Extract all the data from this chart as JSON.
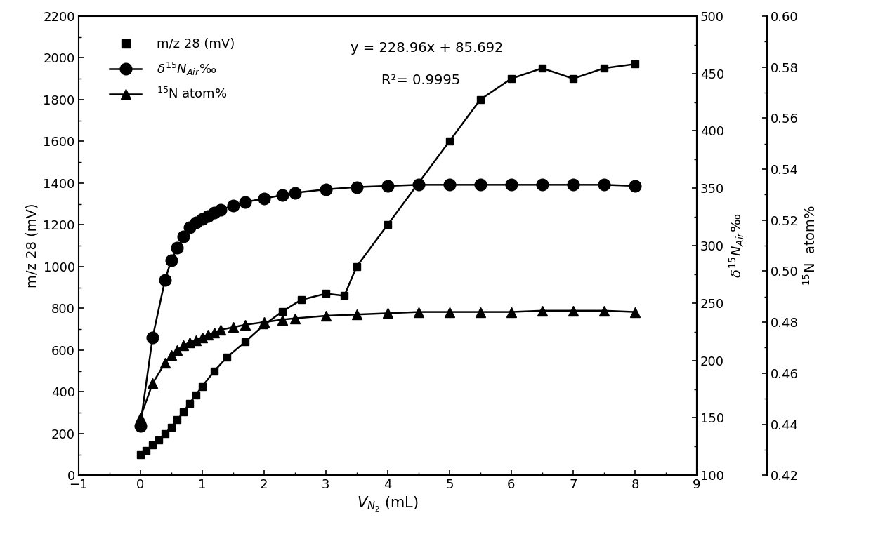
{
  "x_mz28": [
    0.0,
    0.1,
    0.2,
    0.3,
    0.4,
    0.5,
    0.6,
    0.7,
    0.8,
    0.9,
    1.0,
    1.2,
    1.4,
    1.7,
    2.0,
    2.3,
    2.6,
    3.0,
    3.3,
    3.5,
    4.0,
    4.5,
    5.0,
    5.5,
    6.0,
    6.5,
    7.0,
    7.5,
    8.0
  ],
  "y_mz28": [
    100,
    120,
    145,
    170,
    200,
    230,
    265,
    305,
    345,
    385,
    425,
    500,
    565,
    640,
    720,
    785,
    840,
    870,
    860,
    1000,
    1200,
    1400,
    1600,
    1800,
    1900,
    1950,
    1900,
    1950,
    1970
  ],
  "x_delta": [
    0.0,
    0.2,
    0.4,
    0.5,
    0.6,
    0.7,
    0.8,
    0.9,
    1.0,
    1.1,
    1.2,
    1.3,
    1.5,
    1.7,
    2.0,
    2.3,
    2.5,
    3.0,
    3.5,
    4.0,
    4.5,
    5.0,
    5.5,
    6.0,
    6.5,
    7.0,
    7.5,
    8.0
  ],
  "y_delta": [
    143,
    220,
    270,
    287,
    298,
    308,
    316,
    320,
    323,
    326,
    329,
    331,
    335,
    338,
    341,
    344,
    346,
    349,
    351,
    352,
    353,
    353,
    353,
    353,
    353,
    353,
    353,
    352
  ],
  "x_atom": [
    0.0,
    0.2,
    0.4,
    0.5,
    0.6,
    0.7,
    0.8,
    0.9,
    1.0,
    1.1,
    1.2,
    1.3,
    1.5,
    1.7,
    2.0,
    2.3,
    2.5,
    3.0,
    3.5,
    4.0,
    4.5,
    5.0,
    5.5,
    6.0,
    6.5,
    7.0,
    7.5,
    8.0
  ],
  "y_atom": [
    0.4425,
    0.456,
    0.464,
    0.467,
    0.469,
    0.471,
    0.472,
    0.473,
    0.474,
    0.475,
    0.476,
    0.477,
    0.478,
    0.479,
    0.48,
    0.481,
    0.4815,
    0.4825,
    0.483,
    0.4835,
    0.484,
    0.484,
    0.484,
    0.484,
    0.4845,
    0.4845,
    0.4845,
    0.484
  ],
  "equation": "y = 228.96x + 85.692",
  "r2": "R²= 0.9995",
  "xlim": [
    -1,
    9
  ],
  "ylim_left": [
    0,
    2200
  ],
  "ylim_mid": [
    100,
    500
  ],
  "ylim_right": [
    0.42,
    0.6
  ],
  "xticks": [
    -1,
    0,
    1,
    2,
    3,
    4,
    5,
    6,
    7,
    8,
    9
  ],
  "yticks_left": [
    0,
    200,
    400,
    600,
    800,
    1000,
    1200,
    1400,
    1600,
    1800,
    2000,
    2200
  ],
  "yticks_mid": [
    100,
    150,
    200,
    250,
    300,
    350,
    400,
    450,
    500
  ],
  "yticks_right": [
    0.42,
    0.44,
    0.46,
    0.48,
    0.5,
    0.52,
    0.54,
    0.56,
    0.58,
    0.6
  ],
  "fontsize_label": 14,
  "fontsize_tick": 13,
  "fontsize_legend": 13,
  "fontsize_annot": 14,
  "markersize_square": 7,
  "markersize_circle": 12,
  "markersize_triangle": 10,
  "linewidth": 1.8
}
